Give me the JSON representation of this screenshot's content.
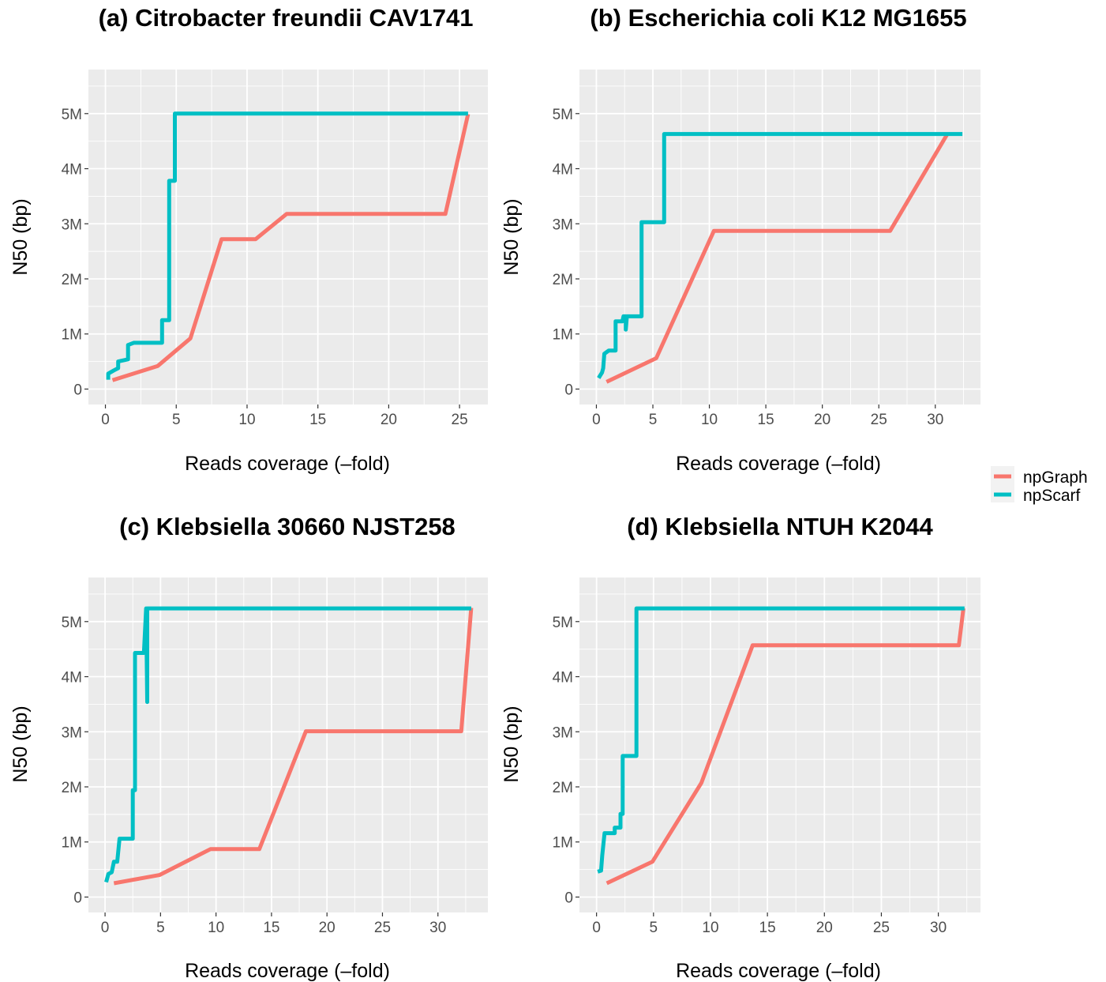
{
  "colors": {
    "npGraph": "#F8766D",
    "npScarf": "#00BFC4",
    "panel_bg": "#EBEBEB",
    "grid": "#FFFFFF"
  },
  "legend": {
    "items": [
      "npGraph",
      "npScarf"
    ]
  },
  "chart_data": [
    {
      "type": "line",
      "title": "(a) Citrobacter freundii CAV1741",
      "xlabel": "Reads coverage (–fold)",
      "ylabel": "N50 (bp)",
      "xlim": [
        -1.2,
        27.0
      ],
      "ylim": [
        -280000,
        5800000
      ],
      "x_ticks": [
        0,
        5,
        10,
        15,
        20,
        25
      ],
      "y_ticks": [
        0,
        1000000,
        2000000,
        3000000,
        4000000,
        5000000
      ],
      "y_tick_labels": [
        "0",
        "1M",
        "2M",
        "3M",
        "4M",
        "5M"
      ],
      "grid": true,
      "series": [
        {
          "name": "npGraph",
          "points": [
            [
              0.5,
              160000
            ],
            [
              3.7,
              420000
            ],
            [
              6.0,
              920000
            ],
            [
              8.2,
              2720000
            ],
            [
              10.6,
              2720000
            ],
            [
              12.8,
              3180000
            ],
            [
              24.0,
              3180000
            ],
            [
              25.6,
              4990000
            ]
          ]
        },
        {
          "name": "npScarf",
          "points": [
            [
              0.2,
              170000
            ],
            [
              0.2,
              280000
            ],
            [
              0.6,
              340000
            ],
            [
              0.9,
              380000
            ],
            [
              0.9,
              500000
            ],
            [
              1.6,
              540000
            ],
            [
              1.6,
              800000
            ],
            [
              2.0,
              840000
            ],
            [
              4.0,
              840000
            ],
            [
              4.0,
              1250000
            ],
            [
              4.5,
              1250000
            ],
            [
              4.5,
              3780000
            ],
            [
              4.9,
              3780000
            ],
            [
              4.9,
              5000000
            ],
            [
              25.6,
              5000000
            ]
          ]
        }
      ]
    },
    {
      "type": "line",
      "title": "(b) Escherichia coli K12 MG1655",
      "xlabel": "Reads coverage (–fold)",
      "ylabel": "N50 (bp)",
      "xlim": [
        -1.5,
        34.0
      ],
      "ylim": [
        -280000,
        5800000
      ],
      "x_ticks": [
        0,
        5,
        10,
        15,
        20,
        25,
        30
      ],
      "y_ticks": [
        0,
        1000000,
        2000000,
        3000000,
        4000000,
        5000000
      ],
      "y_tick_labels": [
        "0",
        "1M",
        "2M",
        "3M",
        "4M",
        "5M"
      ],
      "grid": true,
      "series": [
        {
          "name": "npGraph",
          "points": [
            [
              0.9,
              130000
            ],
            [
              5.3,
              560000
            ],
            [
              10.4,
              2870000
            ],
            [
              26.0,
              2870000
            ],
            [
              31.1,
              4640000
            ]
          ]
        },
        {
          "name": "npScarf",
          "points": [
            [
              0.2,
              200000
            ],
            [
              0.5,
              300000
            ],
            [
              0.6,
              380000
            ],
            [
              0.7,
              640000
            ],
            [
              1.1,
              700000
            ],
            [
              1.7,
              700000
            ],
            [
              1.7,
              1230000
            ],
            [
              2.3,
              1230000
            ],
            [
              2.4,
              1320000
            ],
            [
              2.6,
              1320000
            ],
            [
              2.6,
              1080000
            ],
            [
              2.7,
              1320000
            ],
            [
              4.0,
              1320000
            ],
            [
              4.0,
              3030000
            ],
            [
              6.0,
              3030000
            ],
            [
              6.0,
              4630000
            ],
            [
              32.4,
              4630000
            ]
          ]
        }
      ]
    },
    {
      "type": "line",
      "title": "(c) Klebsiella 30660 NJST258",
      "xlabel": "Reads coverage (–fold)",
      "ylabel": "N50 (bp)",
      "xlim": [
        -1.5,
        34.5
      ],
      "ylim": [
        -280000,
        5800000
      ],
      "x_ticks": [
        0,
        5,
        10,
        15,
        20,
        25,
        30
      ],
      "y_ticks": [
        0,
        1000000,
        2000000,
        3000000,
        4000000,
        5000000
      ],
      "y_tick_labels": [
        "0",
        "1M",
        "2M",
        "3M",
        "4M",
        "5M"
      ],
      "grid": true,
      "series": [
        {
          "name": "npGraph",
          "points": [
            [
              0.8,
              250000
            ],
            [
              4.9,
              400000
            ],
            [
              9.5,
              870000
            ],
            [
              13.9,
              870000
            ],
            [
              18.1,
              3010000
            ],
            [
              32.1,
              3010000
            ],
            [
              33.0,
              5250000
            ]
          ]
        },
        {
          "name": "npScarf",
          "points": [
            [
              0.1,
              270000
            ],
            [
              0.3,
              420000
            ],
            [
              0.6,
              450000
            ],
            [
              0.8,
              640000
            ],
            [
              1.1,
              640000
            ],
            [
              1.3,
              1060000
            ],
            [
              2.5,
              1060000
            ],
            [
              2.5,
              1940000
            ],
            [
              2.7,
              1940000
            ],
            [
              2.7,
              4430000
            ],
            [
              3.5,
              4430000
            ],
            [
              3.7,
              5240000
            ],
            [
              3.8,
              3540000
            ],
            [
              3.8,
              5240000
            ],
            [
              33.0,
              5240000
            ]
          ]
        }
      ]
    },
    {
      "type": "line",
      "title": "(d) Klebsiella NTUH K2044",
      "xlabel": "Reads coverage (–fold)",
      "ylabel": "N50 (bp)",
      "xlim": [
        -1.5,
        33.7
      ],
      "ylim": [
        -280000,
        5800000
      ],
      "x_ticks": [
        0,
        5,
        10,
        15,
        20,
        25,
        30
      ],
      "y_ticks": [
        0,
        1000000,
        2000000,
        3000000,
        4000000,
        5000000
      ],
      "y_tick_labels": [
        "0",
        "1M",
        "2M",
        "3M",
        "4M",
        "5M"
      ],
      "grid": true,
      "series": [
        {
          "name": "npGraph",
          "points": [
            [
              0.9,
              250000
            ],
            [
              4.9,
              640000
            ],
            [
              9.2,
              2070000
            ],
            [
              13.7,
              4570000
            ],
            [
              31.8,
              4570000
            ],
            [
              32.2,
              5240000
            ]
          ]
        },
        {
          "name": "npScarf",
          "points": [
            [
              0.1,
              460000
            ],
            [
              0.4,
              480000
            ],
            [
              0.5,
              760000
            ],
            [
              0.7,
              1160000
            ],
            [
              1.6,
              1160000
            ],
            [
              1.6,
              1260000
            ],
            [
              2.1,
              1260000
            ],
            [
              2.1,
              1510000
            ],
            [
              2.3,
              1510000
            ],
            [
              2.3,
              2560000
            ],
            [
              3.5,
              2560000
            ],
            [
              3.5,
              5240000
            ],
            [
              32.3,
              5240000
            ]
          ]
        }
      ]
    }
  ]
}
